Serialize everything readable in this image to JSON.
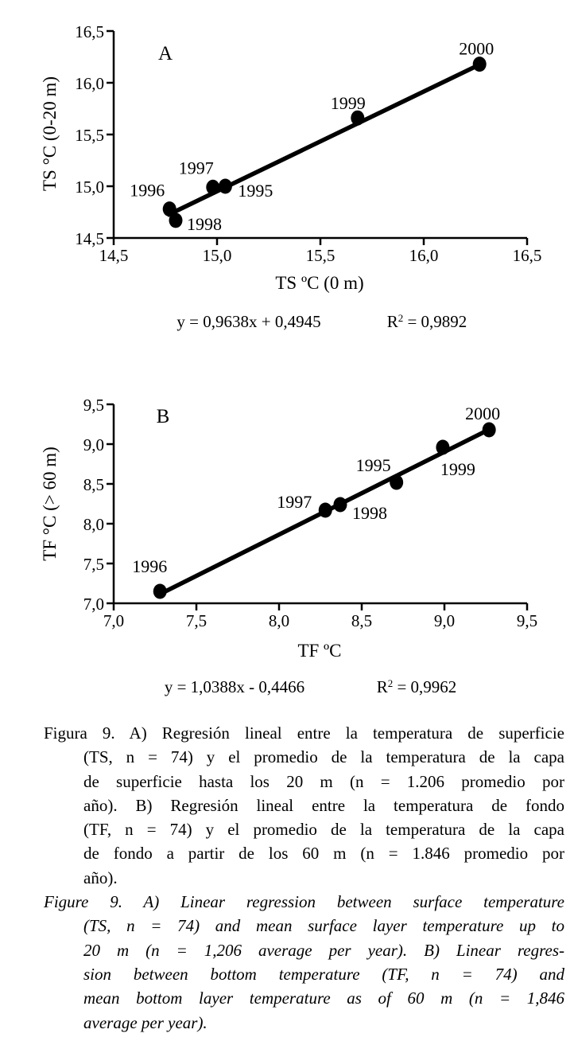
{
  "background": "#ffffff",
  "ink_color": "#000000",
  "chart_data": [
    {
      "type": "scatter",
      "panel_label": "A",
      "xlabel": "TS ºC (0 m)",
      "ylabel": "TS °C (0-20 m)",
      "xlim": [
        14.5,
        16.5
      ],
      "ylim": [
        14.5,
        16.5
      ],
      "xtick_labels": [
        "14,5",
        "15,0",
        "15,5",
        "16,0",
        "16,5"
      ],
      "ytick_labels": [
        "14,5",
        "15,0",
        "15,5",
        "16,0",
        "16,5"
      ],
      "grid": false,
      "legend": null,
      "marker_color": "#000000",
      "points": [
        {
          "year": "1995",
          "x": 15.04,
          "y": 15.0
        },
        {
          "year": "1996",
          "x": 14.77,
          "y": 14.78
        },
        {
          "year": "1997",
          "x": 14.98,
          "y": 14.99
        },
        {
          "year": "1998",
          "x": 14.8,
          "y": 14.67
        },
        {
          "year": "1999",
          "x": 15.68,
          "y": 15.66
        },
        {
          "year": "2000",
          "x": 16.27,
          "y": 16.18
        }
      ],
      "fit_line": {
        "slope": 0.9638,
        "intercept": 0.4945,
        "x_start": 14.76,
        "x_end": 16.27
      },
      "equation_text": "y = 0,9638x + 0,4945",
      "r2_base": "R",
      "r2_sup": "2",
      "r2_rest": " = 0,9892"
    },
    {
      "type": "scatter",
      "panel_label": "B",
      "xlabel": "TF ºC",
      "ylabel": "TF °C (> 60 m)",
      "xlim": [
        7.0,
        9.5
      ],
      "ylim": [
        7.0,
        9.5
      ],
      "xtick_labels": [
        "7,0",
        "7,5",
        "8,0",
        "8,5",
        "9,0",
        "9,5"
      ],
      "ytick_labels": [
        "7,0",
        "7,5",
        "8,0",
        "8,5",
        "9,0",
        "9,5"
      ],
      "grid": false,
      "legend": null,
      "marker_color": "#000000",
      "points": [
        {
          "year": "1995",
          "x": 8.71,
          "y": 8.52
        },
        {
          "year": "1996",
          "x": 7.28,
          "y": 7.15
        },
        {
          "year": "1997",
          "x": 8.28,
          "y": 8.17
        },
        {
          "year": "1998",
          "x": 8.37,
          "y": 8.24
        },
        {
          "year": "1999",
          "x": 8.99,
          "y": 8.96
        },
        {
          "year": "2000",
          "x": 9.27,
          "y": 9.18
        }
      ],
      "fit_line": {
        "slope": 1.0388,
        "intercept": -0.4466,
        "x_start": 7.28,
        "x_end": 9.27
      },
      "equation_text": "y = 1,0388x - 0,4466",
      "r2_base": "R",
      "r2_sup": "2",
      "r2_rest": " = 0,9962"
    }
  ],
  "captions": {
    "spanish_lines": [
      "Figura 9. A) Regresión lineal entre la temperatura de superficie",
      "(TS, n = 74) y el promedio de la temperatura de la capa",
      "de superficie hasta los 20 m (n = 1.206 promedio por",
      "año). B) Regresión lineal entre la temperatura de fondo",
      "(TF, n = 74) y el promedio de la temperatura de la capa",
      "de fondo a partir de los 60 m (n = 1.846 promedio por",
      "año)."
    ],
    "english_lines": [
      "Figure 9. A) Linear regression between surface temperature",
      "(TS, n = 74) and mean surface layer temperature up to",
      "20 m (n = 1,206 average per year). B) Linear regres-",
      "sion between bottom temperature (TF, n = 74) and",
      "mean bottom layer temperature as of 60 m (n = 1,846",
      "average per year)."
    ]
  }
}
